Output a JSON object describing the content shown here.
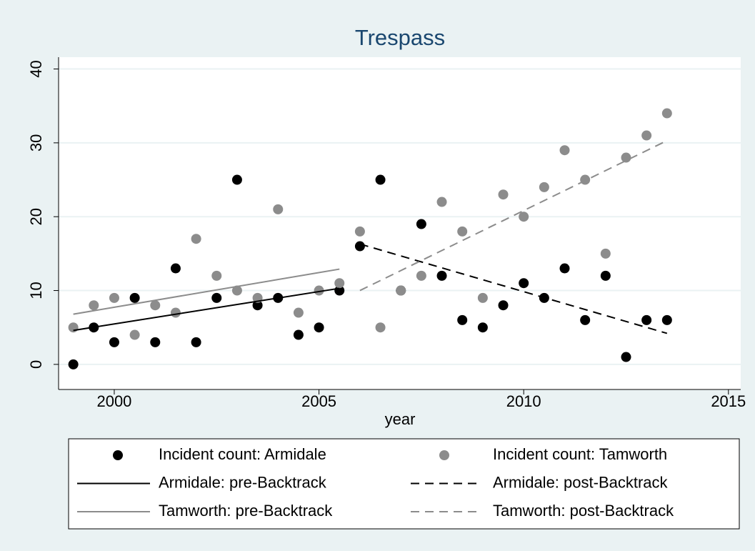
{
  "chart_data": {
    "type": "scatter",
    "title": "Trespass",
    "x_label": "year",
    "xlim": [
      1998.64,
      2015.3
    ],
    "ylim": [
      -3.4,
      41.6
    ],
    "xticks": [
      2000,
      2005,
      2010,
      2015
    ],
    "yticks": [
      0,
      10,
      20,
      30,
      40
    ],
    "grid": true,
    "legend": "bottom",
    "series": [
      {
        "name": "Incident count: Armidale",
        "color": "#000000",
        "kind": "scatter",
        "x": [
          1999,
          1999.5,
          2000,
          2000.5,
          2001,
          2001.5,
          2002,
          2002.5,
          2003,
          2003.5,
          2004,
          2004.5,
          2005,
          2005.5,
          2006,
          2006.5,
          2007,
          2007.5,
          2008,
          2008.5,
          2009,
          2009.5,
          2010,
          2010.5,
          2011,
          2011.5,
          2012,
          2012.5,
          2013,
          2013.5
        ],
        "values": [
          0,
          5,
          3,
          9,
          3,
          13,
          3,
          9,
          25,
          8,
          9,
          4,
          5,
          10,
          16,
          25,
          10,
          19,
          12,
          6,
          5,
          8,
          11,
          9,
          13,
          6,
          12,
          1,
          6,
          6
        ]
      },
      {
        "name": "Incident count: Tamworth",
        "color": "#8c8c8c",
        "kind": "scatter",
        "x": [
          1999,
          1999.5,
          2000,
          2000.5,
          2001,
          2001.5,
          2002,
          2002.5,
          2003,
          2003.5,
          2004,
          2004.5,
          2005,
          2005.5,
          2006,
          2006.5,
          2007,
          2007.5,
          2008,
          2008.5,
          2009,
          2009.5,
          2010,
          2010.5,
          2011,
          2011.5,
          2012,
          2012.5,
          2013,
          2013.5
        ],
        "values": [
          5,
          8,
          9,
          4,
          8,
          7,
          17,
          12,
          10,
          9,
          21,
          7,
          10,
          11,
          18,
          5,
          10,
          12,
          22,
          18,
          9,
          23,
          20,
          24,
          29,
          25,
          15,
          28,
          31,
          34
        ]
      },
      {
        "name": "Armidale: pre-Backtrack",
        "color": "#000000",
        "kind": "line",
        "dashed": false,
        "x": [
          1999,
          2005.5
        ],
        "values": [
          4.6,
          10.3
        ]
      },
      {
        "name": "Armidale: post-Backtrack",
        "color": "#000000",
        "kind": "line",
        "dashed": true,
        "x": [
          2006,
          2013.5
        ],
        "values": [
          16.3,
          4.2
        ]
      },
      {
        "name": "Tamworth: pre-Backtrack",
        "color": "#8c8c8c",
        "kind": "line",
        "dashed": false,
        "x": [
          1999,
          2005.5
        ],
        "values": [
          6.8,
          12.9
        ]
      },
      {
        "name": "Tamworth: post-Backtrack",
        "color": "#8c8c8c",
        "kind": "line",
        "dashed": true,
        "x": [
          2006,
          2013.5
        ],
        "values": [
          10.0,
          30.3
        ]
      }
    ]
  }
}
